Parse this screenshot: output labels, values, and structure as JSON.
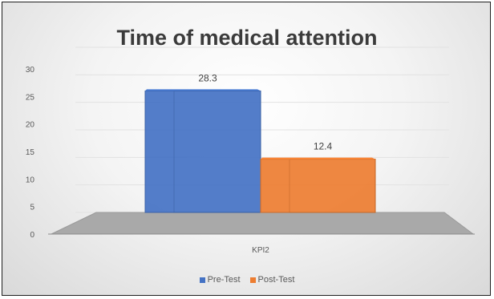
{
  "chart_data": {
    "type": "bar",
    "title": "Time of medical attention",
    "categories": [
      "KPI2"
    ],
    "series": [
      {
        "name": "Pre-Test",
        "values": [
          28.3
        ],
        "color": "#4472C4",
        "data_label": "28.3"
      },
      {
        "name": "Post-Test",
        "values": [
          12.4
        ],
        "color": "#ED7D31",
        "data_label": "12.4"
      }
    ],
    "y_ticks": [
      "0",
      "5",
      "10",
      "15",
      "20",
      "25",
      "30"
    ],
    "ylim": [
      0,
      30
    ],
    "xlabel": "",
    "ylabel": "",
    "grid": true,
    "legend_position": "bottom",
    "style": "3d-column"
  }
}
